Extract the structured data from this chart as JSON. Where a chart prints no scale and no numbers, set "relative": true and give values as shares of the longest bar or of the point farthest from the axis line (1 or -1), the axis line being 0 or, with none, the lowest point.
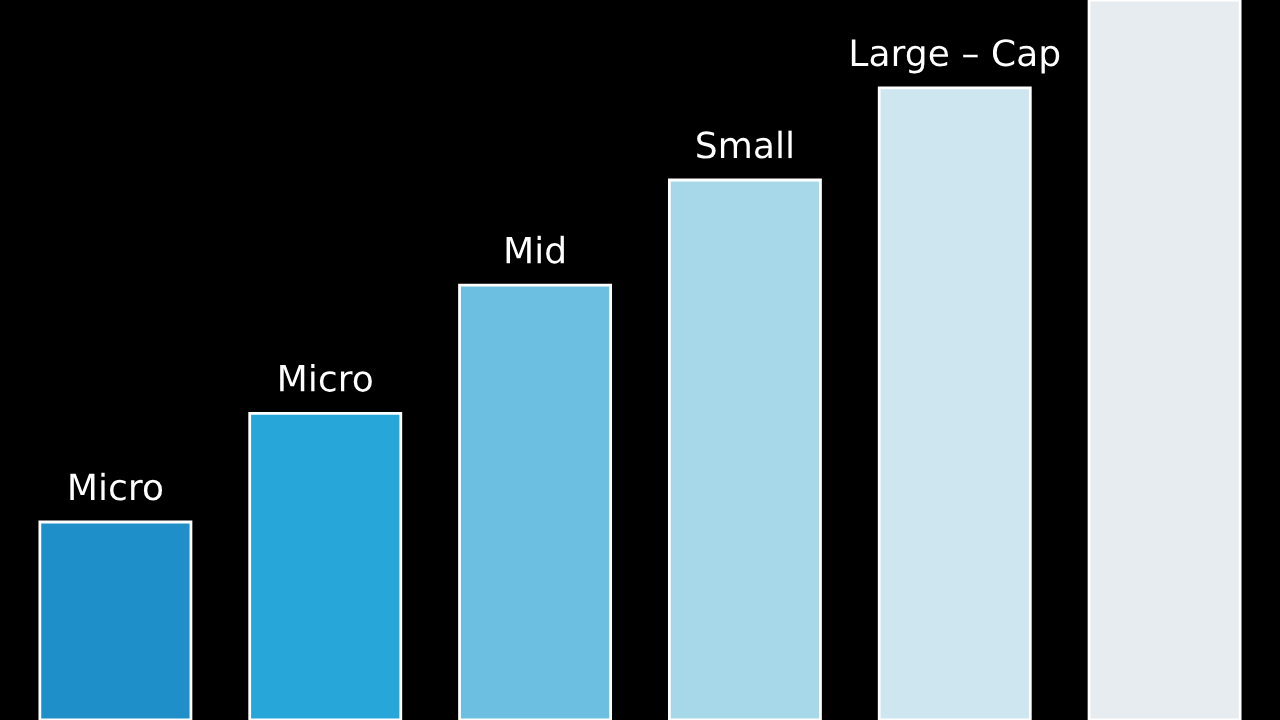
{
  "chart_data": {
    "type": "bar",
    "relative": true,
    "categories": [
      "Micro",
      "Micro",
      "Mid",
      "Small",
      "Large – Cap",
      null
    ],
    "values": [
      0.275,
      0.426,
      0.604,
      0.75,
      0.878,
      1
    ],
    "colors": [
      "#1e8fc8",
      "#27a6da",
      "#6cbfe0",
      "#a6d8ea",
      "#cde6f0",
      "#e6ecf0"
    ],
    "legend": false
  }
}
